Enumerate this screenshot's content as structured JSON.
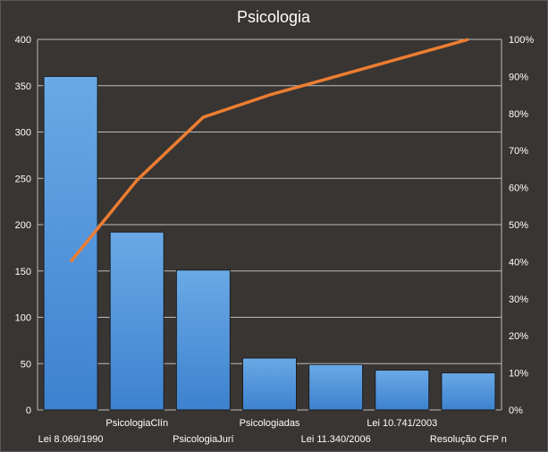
{
  "chart_data": {
    "type": "bar",
    "title": "Psicologia",
    "categories": [
      "Lei 8.069/1990",
      "PsicologiaClín",
      "PsicologiaJurí",
      "Psicologiadas",
      "Lei 11.340/2006",
      "Lei 10.741/2003",
      "Resolução CFP n"
    ],
    "series": [
      {
        "type": "bar",
        "axis": "left",
        "values": [
          360,
          192,
          151,
          56,
          49,
          43,
          40
        ]
      },
      {
        "type": "line",
        "axis": "right",
        "values": [
          40,
          62,
          79,
          85,
          90,
          95,
          100
        ]
      }
    ],
    "ylim": [
      0,
      400
    ],
    "y_ticks": [
      "0",
      "50",
      "100",
      "150",
      "200",
      "250",
      "300",
      "350",
      "400"
    ],
    "y2lim": [
      0,
      100
    ],
    "y2_ticks": [
      "0%",
      "10%",
      "20%",
      "30%",
      "40%",
      "50%",
      "60%",
      "70%",
      "80%",
      "90%",
      "100%"
    ],
    "grid": true,
    "colors": {
      "bar": "#4a90d9",
      "line": "#ed7d31",
      "grid": "#bdbdbd",
      "background": "#383533",
      "text": "#ffffff"
    }
  }
}
